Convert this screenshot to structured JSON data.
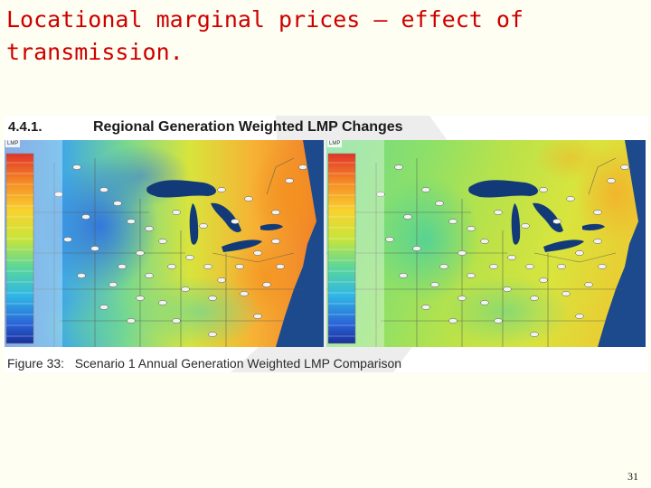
{
  "slide": {
    "title": "Locational marginal prices – effect of transmission.",
    "page_number": "31"
  },
  "figure": {
    "section_number": "4.4.1.",
    "heading": "Regional Generation Weighted LMP Changes",
    "caption": "Figure 33:   Scenario 1 Annual Generation Weighted LMP Comparison",
    "legend_title": "LMP",
    "colors": {
      "lake_water": "#123a78",
      "ocean_water": "#1d4a8c",
      "state_border": "#555555",
      "watermark": "#dcdcdc",
      "title_text": "#cc0000"
    }
  }
}
